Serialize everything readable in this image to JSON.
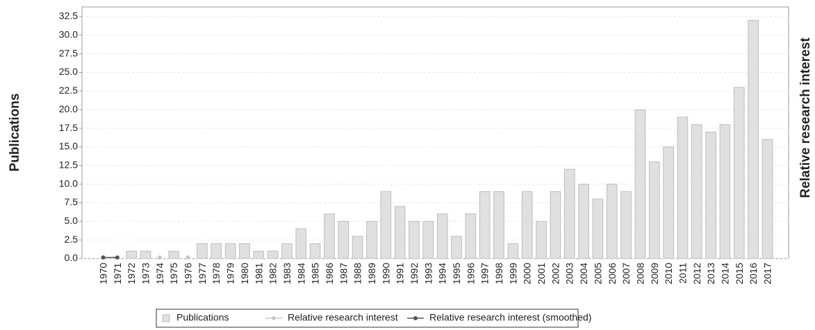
{
  "chart_data": {
    "type": "bar",
    "y_label": "Publications",
    "y2_label": "Relative research interest",
    "categories": [
      "1970",
      "1971",
      "1972",
      "1973",
      "1974",
      "1975",
      "1976",
      "1977",
      "1978",
      "1979",
      "1980",
      "1981",
      "1982",
      "1983",
      "1984",
      "1985",
      "1986",
      "1987",
      "1988",
      "1989",
      "1990",
      "1991",
      "1992",
      "1993",
      "1994",
      "1995",
      "1996",
      "1997",
      "1998",
      "1999",
      "2000",
      "2001",
      "2002",
      "2003",
      "2004",
      "2005",
      "2006",
      "2007",
      "2008",
      "2009",
      "2010",
      "2011",
      "2012",
      "2013",
      "2014",
      "2015",
      "2016",
      "2017"
    ],
    "series": [
      {
        "name": "Publications",
        "color": "#e0e0e0",
        "values": [
          0,
          0,
          1,
          1,
          0,
          1,
          0,
          2,
          2,
          2,
          2,
          1,
          1,
          2,
          4,
          2,
          6,
          5,
          3,
          5,
          9,
          7,
          5,
          5,
          6,
          3,
          6,
          9,
          9,
          2,
          9,
          5,
          9,
          12,
          10,
          8,
          10,
          9,
          20,
          13,
          15,
          19,
          18,
          17,
          18,
          23,
          32,
          16
        ]
      },
      {
        "name": "Relative research interest",
        "color": "#c8c8c8",
        "axis": "y2",
        "values": [
          null,
          null,
          null,
          null,
          0.15,
          null,
          0.15,
          null,
          null,
          null,
          null,
          null,
          null,
          null,
          null,
          null,
          null,
          null,
          null,
          null,
          null,
          null,
          null,
          null,
          null,
          null,
          null,
          null,
          null,
          null,
          null,
          null,
          null,
          null,
          null,
          null,
          null,
          null,
          null,
          null,
          null,
          null,
          null,
          null,
          null,
          null,
          null,
          null
        ]
      },
      {
        "name": "Relative research interest (smoothed)",
        "color": "#555555",
        "axis": "y2",
        "values": [
          0.15,
          0.15,
          null,
          null,
          null,
          null,
          null,
          null,
          null,
          null,
          null,
          null,
          null,
          null,
          null,
          null,
          null,
          null,
          null,
          null,
          null,
          null,
          null,
          null,
          null,
          null,
          null,
          null,
          null,
          null,
          null,
          null,
          null,
          null,
          null,
          null,
          null,
          null,
          null,
          null,
          null,
          null,
          null,
          null,
          null,
          null,
          null,
          null
        ]
      }
    ],
    "ylim": [
      0,
      33.8
    ],
    "y2lim": [
      0,
      33.8
    ],
    "yticks": [
      {
        "value": 0,
        "label": "0.0"
      },
      2.5,
      {
        "value": 5,
        "label": "5.0"
      },
      7.5,
      {
        "value": 10,
        "label": "10.0"
      },
      12.5,
      {
        "value": 15,
        "label": "15.0"
      },
      17.5,
      {
        "value": 20,
        "label": "20.0"
      },
      22.5,
      {
        "value": 25,
        "label": "25.0"
      },
      27.5,
      {
        "value": 30,
        "label": "30.0"
      },
      32.5
    ],
    "grid": true,
    "legend": "bottom"
  }
}
